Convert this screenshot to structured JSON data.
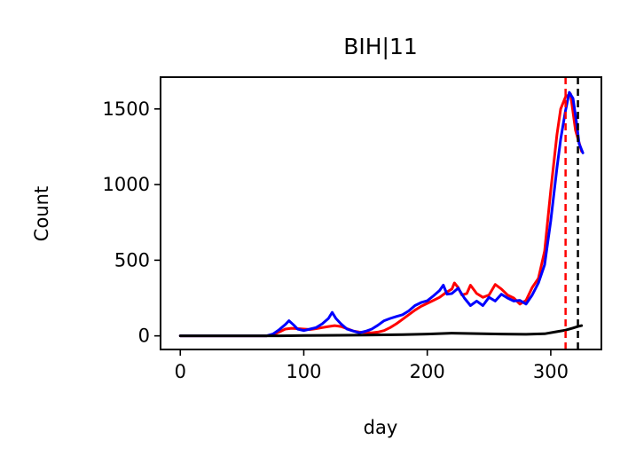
{
  "chart_data": {
    "type": "line",
    "title": "BIH|11",
    "xlabel": "day",
    "ylabel": "Count",
    "xlim": [
      -16,
      341
    ],
    "ylim": [
      -90,
      1710
    ],
    "x_ticks": [
      0,
      100,
      200,
      300
    ],
    "y_ticks": [
      0,
      500,
      1000,
      1500
    ],
    "x_tick_labels": [
      "0",
      "100",
      "200",
      "300"
    ],
    "y_tick_labels": [
      "0",
      "500",
      "1000",
      "1500"
    ],
    "grid": false,
    "legend": "none",
    "series": [
      {
        "color": "#ff0000",
        "width": 3,
        "points": [
          [
            0,
            0
          ],
          [
            70,
            0
          ],
          [
            75,
            8
          ],
          [
            80,
            25
          ],
          [
            85,
            45
          ],
          [
            90,
            50
          ],
          [
            95,
            48
          ],
          [
            100,
            45
          ],
          [
            105,
            42
          ],
          [
            110,
            48
          ],
          [
            115,
            55
          ],
          [
            120,
            62
          ],
          [
            125,
            68
          ],
          [
            130,
            62
          ],
          [
            135,
            48
          ],
          [
            140,
            32
          ],
          [
            145,
            25
          ],
          [
            150,
            22
          ],
          [
            155,
            20
          ],
          [
            160,
            25
          ],
          [
            165,
            35
          ],
          [
            170,
            55
          ],
          [
            175,
            80
          ],
          [
            180,
            110
          ],
          [
            185,
            140
          ],
          [
            190,
            170
          ],
          [
            195,
            195
          ],
          [
            200,
            215
          ],
          [
            205,
            235
          ],
          [
            210,
            255
          ],
          [
            215,
            285
          ],
          [
            220,
            310
          ],
          [
            222,
            350
          ],
          [
            225,
            320
          ],
          [
            228,
            270
          ],
          [
            232,
            280
          ],
          [
            235,
            335
          ],
          [
            240,
            280
          ],
          [
            245,
            255
          ],
          [
            250,
            270
          ],
          [
            255,
            340
          ],
          [
            260,
            310
          ],
          [
            265,
            270
          ],
          [
            270,
            250
          ],
          [
            275,
            210
          ],
          [
            280,
            235
          ],
          [
            285,
            320
          ],
          [
            290,
            380
          ],
          [
            295,
            560
          ],
          [
            300,
            960
          ],
          [
            305,
            1330
          ],
          [
            308,
            1500
          ],
          [
            312,
            1580
          ],
          [
            316,
            1600
          ],
          [
            320,
            1360
          ],
          [
            325,
            1220
          ]
        ]
      },
      {
        "color": "#0000ff",
        "width": 3,
        "points": [
          [
            0,
            0
          ],
          [
            70,
            0
          ],
          [
            75,
            12
          ],
          [
            80,
            40
          ],
          [
            85,
            75
          ],
          [
            88,
            100
          ],
          [
            92,
            70
          ],
          [
            95,
            45
          ],
          [
            100,
            35
          ],
          [
            105,
            45
          ],
          [
            110,
            55
          ],
          [
            115,
            80
          ],
          [
            120,
            115
          ],
          [
            123,
            155
          ],
          [
            126,
            115
          ],
          [
            130,
            80
          ],
          [
            135,
            45
          ],
          [
            140,
            32
          ],
          [
            145,
            20
          ],
          [
            150,
            30
          ],
          [
            155,
            45
          ],
          [
            160,
            70
          ],
          [
            165,
            100
          ],
          [
            170,
            115
          ],
          [
            175,
            128
          ],
          [
            180,
            140
          ],
          [
            185,
            165
          ],
          [
            190,
            200
          ],
          [
            195,
            220
          ],
          [
            200,
            232
          ],
          [
            205,
            265
          ],
          [
            210,
            300
          ],
          [
            213,
            335
          ],
          [
            216,
            275
          ],
          [
            220,
            280
          ],
          [
            225,
            315
          ],
          [
            230,
            250
          ],
          [
            235,
            200
          ],
          [
            240,
            230
          ],
          [
            245,
            200
          ],
          [
            250,
            255
          ],
          [
            255,
            230
          ],
          [
            260,
            275
          ],
          [
            265,
            250
          ],
          [
            270,
            230
          ],
          [
            275,
            235
          ],
          [
            280,
            210
          ],
          [
            285,
            270
          ],
          [
            290,
            350
          ],
          [
            295,
            470
          ],
          [
            300,
            760
          ],
          [
            305,
            1110
          ],
          [
            308,
            1300
          ],
          [
            312,
            1490
          ],
          [
            315,
            1610
          ],
          [
            318,
            1570
          ],
          [
            321,
            1400
          ],
          [
            323,
            1270
          ],
          [
            326,
            1210
          ]
        ]
      },
      {
        "color": "#000000",
        "width": 3,
        "points": [
          [
            0,
            0
          ],
          [
            80,
            0
          ],
          [
            100,
            2
          ],
          [
            150,
            5
          ],
          [
            180,
            8
          ],
          [
            200,
            12
          ],
          [
            220,
            18
          ],
          [
            240,
            15
          ],
          [
            260,
            12
          ],
          [
            280,
            10
          ],
          [
            295,
            14
          ],
          [
            305,
            28
          ],
          [
            312,
            38
          ],
          [
            318,
            52
          ],
          [
            322,
            62
          ],
          [
            325,
            68
          ]
        ]
      }
    ],
    "vlines": [
      {
        "x": 312,
        "color": "#ff0000",
        "style": "dashed"
      },
      {
        "x": 322,
        "color": "#000000",
        "style": "dashed"
      }
    ]
  }
}
